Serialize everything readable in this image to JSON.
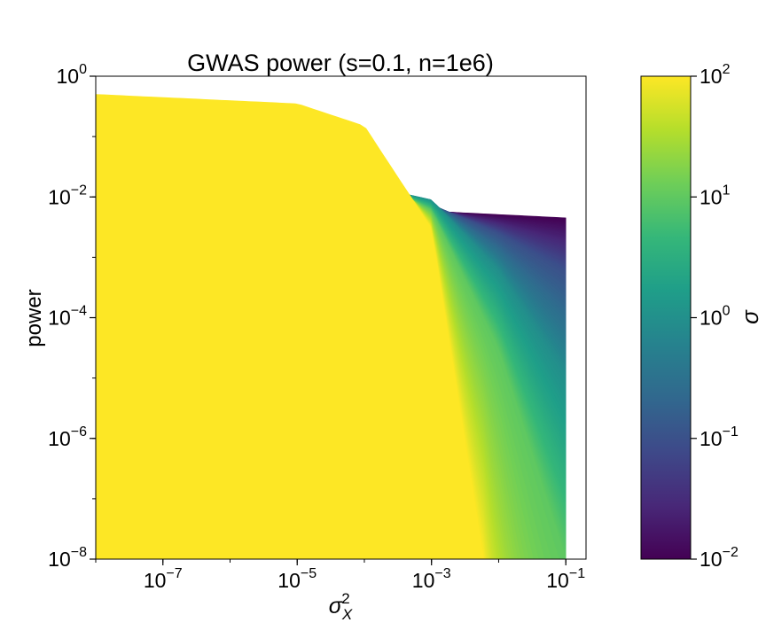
{
  "chart_data": {
    "type": "area",
    "title": "GWAS power (s=0.1, n=1e6)",
    "xlabel": "σ_X^2",
    "ylabel": "power",
    "xscale": "log",
    "yscale": "log",
    "xlim": [
      1e-08,
      0.2
    ],
    "ylim": [
      1e-08,
      1
    ],
    "x_range": [
      1e-08,
      0.1
    ],
    "x_ticks": [
      {
        "value": 1e-07,
        "base": "10",
        "exp": "−7"
      },
      {
        "value": 1e-05,
        "base": "10",
        "exp": "−5"
      },
      {
        "value": 0.001,
        "base": "10",
        "exp": "−3"
      },
      {
        "value": 0.1,
        "base": "10",
        "exp": "−1"
      }
    ],
    "y_ticks": [
      {
        "value": 1e-08,
        "base": "10",
        "exp": "−8"
      },
      {
        "value": 1e-06,
        "base": "10",
        "exp": "−6"
      },
      {
        "value": 0.0001,
        "base": "10",
        "exp": "−4"
      },
      {
        "value": 0.01,
        "base": "10",
        "exp": "−2"
      },
      {
        "value": 1,
        "base": "10",
        "exp": "0"
      }
    ],
    "colorbar": {
      "label": "σ",
      "scale": "log",
      "colormap": "viridis",
      "range": [
        0.01,
        100
      ],
      "ticks": [
        {
          "value": 0.01,
          "base": "10",
          "exp": "−2"
        },
        {
          "value": 0.1,
          "base": "10",
          "exp": "−1"
        },
        {
          "value": 1,
          "base": "10",
          "exp": "0"
        },
        {
          "value": 10,
          "base": "10",
          "exp": "1"
        },
        {
          "value": 100,
          "base": "10",
          "exp": "2"
        }
      ]
    },
    "series_family": {
      "parameter": "σ",
      "parameter_range": [
        0.01,
        100
      ],
      "curve_count": 120,
      "curve_points": [
        {
          "sigma": 0.01,
          "points": [
            [
              1e-08,
              0.0066
            ],
            [
              1e-05,
              0.0065
            ],
            [
              0.001,
              0.0058
            ],
            [
              0.1,
              0.0045
            ]
          ]
        },
        {
          "sigma": 0.1,
          "points": [
            [
              1e-08,
              0.012
            ],
            [
              1e-05,
              0.012
            ],
            [
              0.001,
              0.0075
            ],
            [
              0.01,
              0.0025
            ],
            [
              0.1,
              0.0006
            ]
          ]
        },
        {
          "sigma": 1,
          "points": [
            [
              1e-08,
              0.03
            ],
            [
              1e-05,
              0.028
            ],
            [
              0.001,
              0.009
            ],
            [
              0.01,
              0.0006
            ],
            [
              0.1,
              1e-05
            ]
          ]
        },
        {
          "sigma": 10,
          "points": [
            [
              1e-08,
              0.12
            ],
            [
              1e-05,
              0.1
            ],
            [
              0.001,
              0.006
            ],
            [
              0.01,
              3e-05
            ],
            [
              0.1,
              1e-08
            ]
          ]
        },
        {
          "sigma": 100,
          "points": [
            [
              1e-08,
              0.5
            ],
            [
              1e-05,
              0.35
            ],
            [
              0.0001,
              0.15
            ],
            [
              0.001,
              0.003
            ],
            [
              0.006,
              1e-08
            ]
          ]
        }
      ]
    },
    "colors": {
      "viridis": [
        "#440154",
        "#482878",
        "#3e4989",
        "#31688e",
        "#26828e",
        "#1f9e89",
        "#35b779",
        "#6ece58",
        "#b5de2b",
        "#fde725"
      ]
    }
  }
}
